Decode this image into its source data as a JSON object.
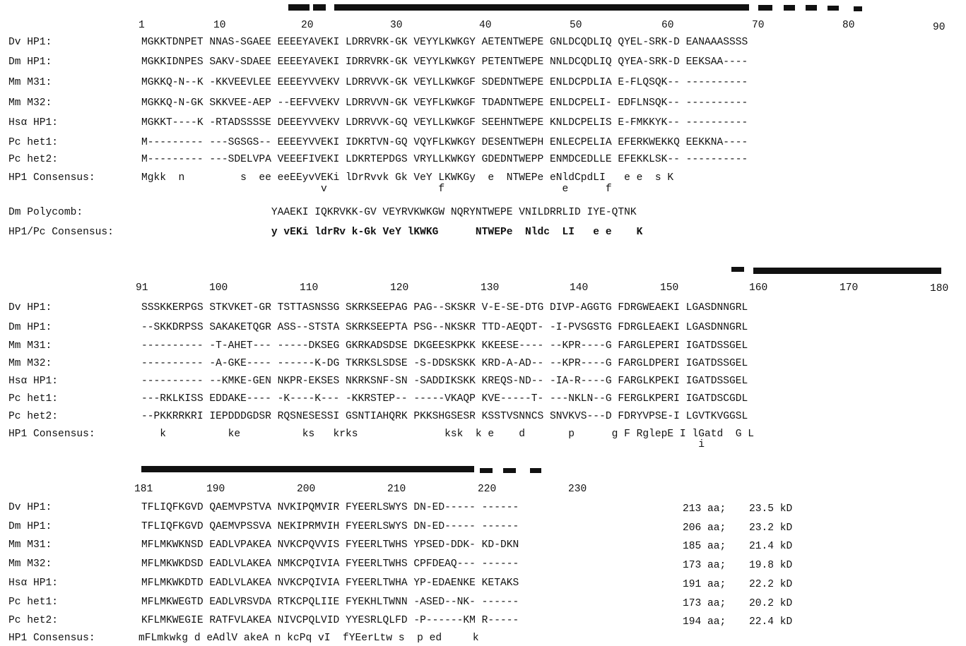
{
  "blocks": [
    {
      "positions": [
        "1",
        "10",
        "20",
        "30",
        "40",
        "50",
        "60",
        "70",
        "80",
        "90"
      ],
      "rows": [
        {
          "label": "Dv HP1:",
          "seq": "MGKKTDNPET NNAS-SGAEE EEEEYAVEKI LDRRVRK-GK VEYYLKWKGY AETENTWEPE GNLDCQDLIQ QYEL-SRK-D EANAAASSSS"
        },
        {
          "label": "Dm HP1:",
          "seq": "MGKKIDNPES SAKV-SDAEE EEEEYAVEKI IDRRVRK-GK VEYYLKWKGY PETENTWEPE NNLDCQDLIQ QYEA-SRK-D EEKSAA----"
        },
        {
          "label": "Mm M31:",
          "seq": "MGKKQ-N--K -KKVEEVLEE EEEEYVVEKV LDRRVVK-GK VEYLLKWKGF SDEDNTWEPE ENLDCPDLIA E-FLQSQK-- ----------"
        },
        {
          "label": "Mm M32:",
          "seq": "MGKKQ-N-GK SKKVEE-AEP --EEFVVEKV LDRRVVN-GK VEYFLKWKGF TDADNTWEPE ENLDCPELI- EDFLNSQK-- ----------"
        },
        {
          "label": "Hsα HP1:",
          "seq": "MGKKT----K -RTADSSSSE DEEEYVVEKV LDRRVVK-GQ VEYLLKWKGF SEEHNTWEPE KNLDCPELIS E-FMKKYK-- ----------"
        },
        {
          "label": "Pc het1:",
          "seq": "M--------- ---SGSGS-- EEEEYVVEKI IDKRTVN-GQ VQYFLKWKGY DESENTWEPH ENLECPELIA EFERKWEKKQ EEKKNA----"
        },
        {
          "label": "Pc het2:",
          "seq": "M--------- ---SDELVPA VEEEFIVEKI LDKRTEPDGS VRYLLKWKGY GDEDNTWEPP ENMDCEDLLE EFEKKLSK-- ----------"
        },
        {
          "label": "HP1 Consensus:",
          "seq": "Mgkk  n         s  ee eeEEyvVEKi lDrRvvk Gk VeY LKWKGy  e  NTWEPe eNldCpdLI   e e  s K"
        },
        {
          "label": "",
          "seq": "                             v                  f                   e      f"
        },
        {
          "label": "",
          "seq": ""
        },
        {
          "label": "Dm Polycomb:",
          "seq": "                     YAAEKI IQKRVKK-GV VEYRVKWKGW NQRYNTWEPE VNILDRRLID IYE-QTNK"
        },
        {
          "label": "HP1/Pc Consensus:",
          "seq": "                     y vEKi ldrRv k-Gk VeY lKWKG      NTWEPe  Nldc  LI   e e    K"
        }
      ]
    },
    {
      "positions": [
        "91",
        "100",
        "110",
        "120",
        "130",
        "140",
        "150",
        "160",
        "170",
        "180"
      ],
      "rows": [
        {
          "label": "Dv HP1:",
          "seq": "SSSKKERPGS STKVKET-GR TSTTASNSSG SKRKSEEPAG PAG--SKSKR V-E-SE-DTG DIVP-AGGTG FDRGWEAEKI LGASDNNGRL"
        },
        {
          "label": "Dm HP1:",
          "seq": "--SKKDRPSS SAKAKETQGR ASS--STSTA SKRKSEEPTA PSG--NKSKR TTD-AEQDT- -I-PVSGSTG FDRGLEAEKI LGASDNNGRL"
        },
        {
          "label": "Mm M31:",
          "seq": "---------- -T-AHET--- -----DKSEG GKRKADSDSE DKGEESKPKK KKEESE---- --KPR----G FARGLEPERI IGATDSSGEL"
        },
        {
          "label": "Mm M32:",
          "seq": "---------- -A-GKE---- ------K-DG TKRKSLSDSE -S-DDSKSKK KRD-A-AD-- --KPR----G FARGLDPERI IGATDSSGEL"
        },
        {
          "label": "Hsα HP1:",
          "seq": "---------- --KMKE-GEN NKPR-EKSES NKRKSNF-SN -SADDIKSKK KREQS-ND-- -IA-R----G FARGLKPEKI IGATDSSGEL"
        },
        {
          "label": "Pc het1:",
          "seq": "---RKLKISS EDDAKE---- -K----K--- -KKRSTEP-- -----VKAQP KVE-----T- ---NKLN--G FERGLKPERI IGATDSCGDL"
        },
        {
          "label": "Pc het2:",
          "seq": "--PKKRRKRI IEPDDDGDSR RQSNESESSI GSNTIAHQRK PKKSHGSESR KSSTVSNNCS SNVKVS---D FDRYVPSE-I LGVTKVGGSL"
        },
        {
          "label": "HP1 Consensus:",
          "seq": "   k          ke          ks   krks              ksk  k e    d       p      g F RglepE I lGatd  G L"
        },
        {
          "label": "",
          "seq": "                                                                                          i"
        }
      ]
    },
    {
      "positions": [
        "181",
        "190",
        "200",
        "210",
        "220",
        "230"
      ],
      "rows": [
        {
          "label": "Dv HP1:",
          "seq": "TFLIQFKGVD QAEMVPSTVA NVKIPQMVIR FYEERLSWYS DN-ED----- ------",
          "aa": "213 aa;",
          "kd": "23.5 kD"
        },
        {
          "label": "Dm HP1:",
          "seq": "TFLIQFKGVD QAEMVPSSVA NEKIPRMVIH FYEERLSWYS DN-ED----- ------",
          "aa": "206 aa;",
          "kd": "23.2 kD"
        },
        {
          "label": "Mm M31:",
          "seq": "MFLMKWKNSD EADLVPAKEA NVKCPQVVIS FYEERLTWHS YPSED-DDK- KD-DKN",
          "aa": "185 aa;",
          "kd": "21.4 kD"
        },
        {
          "label": "Mm M32:",
          "seq": "MFLMKWKDSD EADLVLAKEA NMKCPQIVIA FYEERLTWHS CPFDEAQ--- ------",
          "aa": "173 aa;",
          "kd": "19.8 kD"
        },
        {
          "label": "Hsα HP1:",
          "seq": "MFLMKWKDTD EADLVLAKEA NVKCPQIVIA FYEERLTWHA YP-EDAENKE KETAKS",
          "aa": "191 aa;",
          "kd": "22.2 kD"
        },
        {
          "label": "Pc het1:",
          "seq": "MFLMKWEGTD EADLVRSVDA RTKCPQLIIE FYEKHLTWNN -ASED--NK- ------",
          "aa": "173 aa;",
          "kd": "20.2 kD"
        },
        {
          "label": "Pc het2:",
          "seq": "KFLMKWEGIE RATFVLAKEA NIVCPQLVID YYESRLQLFD -P------KM R-----",
          "aa": "194 aa;",
          "kd": "22.4 kD"
        },
        {
          "label": "HP1 Consensus:",
          "seq": "mFLmkwkg d eAdlV akeA n kcPq vI  fYEerLtw s  p ed     k"
        }
      ]
    }
  ]
}
